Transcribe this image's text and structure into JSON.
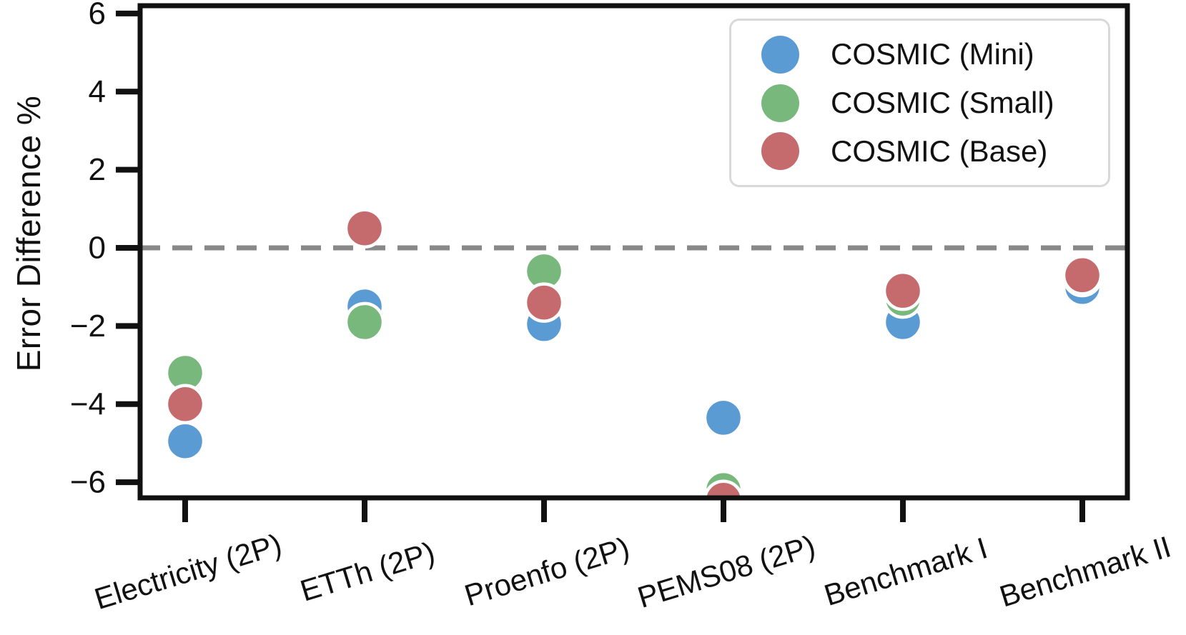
{
  "chart_data": {
    "type": "scatter",
    "title": "",
    "xlabel": "",
    "ylabel": "Error Difference %",
    "ylim": [
      -6.4,
      6.2
    ],
    "yticks": [
      6,
      4,
      2,
      0,
      -2,
      -4,
      -6
    ],
    "grid": false,
    "zero_line": {
      "value": 0,
      "style": "dashed",
      "color": "#888888"
    },
    "categories": [
      "Electricity (2P)",
      "ETTh (2P)",
      "Proenfo (2P)",
      "PEMS08 (2P)",
      "Benchmark I",
      "Benchmark II"
    ],
    "series": [
      {
        "name": "COSMIC (Mini)",
        "color": "#5a9bd4",
        "values": [
          -4.95,
          -1.5,
          -1.95,
          -4.35,
          -1.9,
          -1.0
        ]
      },
      {
        "name": "COSMIC (Small)",
        "color": "#79b87d",
        "values": [
          -3.2,
          -1.9,
          -0.6,
          -6.2,
          -1.3,
          -0.75
        ]
      },
      {
        "name": "COSMIC (Base)",
        "color": "#c56b6e",
        "values": [
          -4.0,
          0.5,
          -1.4,
          -6.45,
          -1.1,
          -0.7
        ]
      }
    ],
    "legend": {
      "position": "upper right"
    },
    "axis_color": "#111111",
    "marker_edge_color": "#ffffff"
  }
}
